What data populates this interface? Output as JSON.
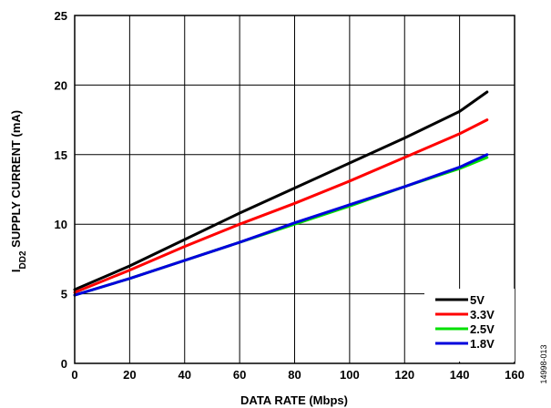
{
  "chart_data": {
    "type": "line",
    "xlabel": "DATA RATE (Mbps)",
    "ylabel_main": "I",
    "ylabel_sub": "DD2",
    "ylabel_rest": " SUPPLY CURRENT (mA)",
    "xlim": [
      0,
      160
    ],
    "ylim": [
      0,
      25
    ],
    "xticks": [
      0,
      20,
      40,
      60,
      80,
      100,
      120,
      140,
      160
    ],
    "yticks": [
      0,
      5,
      10,
      15,
      20,
      25
    ],
    "grid": true,
    "legend_position": "bottom-right",
    "x": [
      0,
      20,
      40,
      60,
      80,
      100,
      120,
      140,
      150
    ],
    "series": [
      {
        "name": "5V",
        "color": "#000000",
        "values": [
          5.3,
          7.0,
          8.9,
          10.8,
          12.6,
          14.4,
          16.2,
          18.1,
          19.5
        ]
      },
      {
        "name": "3.3V",
        "color": "#ff0000",
        "values": [
          5.1,
          6.7,
          8.4,
          10.0,
          11.5,
          13.1,
          14.8,
          16.5,
          17.5
        ]
      },
      {
        "name": "2.5V",
        "color": "#00e000",
        "values": [
          4.9,
          6.1,
          7.4,
          8.7,
          10.0,
          11.3,
          12.7,
          14.0,
          14.8
        ]
      },
      {
        "name": "1.8V",
        "color": "#0000dd",
        "values": [
          4.9,
          6.1,
          7.4,
          8.7,
          10.1,
          11.4,
          12.7,
          14.1,
          15.0
        ]
      }
    ]
  },
  "figure_id": "14998-013"
}
